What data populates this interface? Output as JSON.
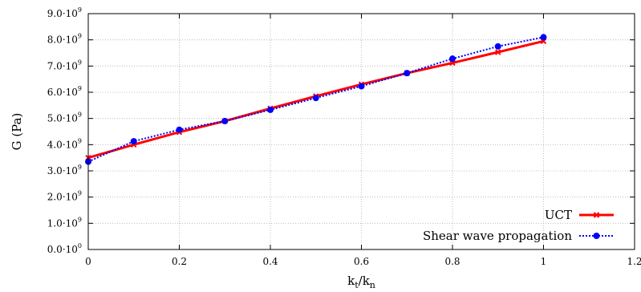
{
  "chart_data": {
    "type": "line",
    "xlabel": {
      "base": "k",
      "sub1": "t",
      "slash": "/",
      "base2": "k",
      "sub2": "n"
    },
    "ylabel": "G (Pa)",
    "xlim": [
      0,
      1.2
    ],
    "ylim": [
      0,
      9000000000
    ],
    "xticks": [
      {
        "value": 0,
        "label": "0"
      },
      {
        "value": 0.2,
        "label": "0.2"
      },
      {
        "value": 0.4,
        "label": "0.4"
      },
      {
        "value": 0.6,
        "label": "0.6"
      },
      {
        "value": 0.8,
        "label": "0.8"
      },
      {
        "value": 1.0,
        "label": "1"
      },
      {
        "value": 1.2,
        "label": "1.2"
      }
    ],
    "yticks": [
      {
        "value": 0,
        "mantissa": "0.0·10",
        "exp": "0"
      },
      {
        "value": 1000000000,
        "mantissa": "1.0·10",
        "exp": "9"
      },
      {
        "value": 2000000000,
        "mantissa": "2.0·10",
        "exp": "9"
      },
      {
        "value": 3000000000,
        "mantissa": "3.0·10",
        "exp": "9"
      },
      {
        "value": 4000000000,
        "mantissa": "4.0·10",
        "exp": "9"
      },
      {
        "value": 5000000000,
        "mantissa": "5.0·10",
        "exp": "9"
      },
      {
        "value": 6000000000,
        "mantissa": "6.0·10",
        "exp": "9"
      },
      {
        "value": 7000000000,
        "mantissa": "7.0·10",
        "exp": "9"
      },
      {
        "value": 8000000000,
        "mantissa": "8.0·10",
        "exp": "9"
      },
      {
        "value": 9000000000,
        "mantissa": "9.0·10",
        "exp": "9"
      }
    ],
    "grid": true,
    "legend_position": "bottom-right",
    "series": [
      {
        "name": "UCT",
        "color": "#ff0000",
        "style": "solid",
        "marker": "cross",
        "x": [
          0,
          0.1,
          0.2,
          0.3,
          0.4,
          0.5,
          0.6,
          0.7,
          0.8,
          0.9,
          1.0
        ],
        "y": [
          3500000000,
          4000000000,
          4480000000,
          4900000000,
          5380000000,
          5850000000,
          6300000000,
          6730000000,
          7120000000,
          7530000000,
          7950000000
        ]
      },
      {
        "name": "Shear wave propagation",
        "color": "#0000ff",
        "style": "dotted",
        "marker": "circle",
        "x": [
          0,
          0.1,
          0.2,
          0.3,
          0.4,
          0.5,
          0.6,
          0.7,
          0.8,
          0.9,
          1.0
        ],
        "y": [
          3350000000,
          4130000000,
          4570000000,
          4900000000,
          5330000000,
          5780000000,
          6230000000,
          6730000000,
          7280000000,
          7750000000,
          8100000000
        ]
      }
    ]
  }
}
